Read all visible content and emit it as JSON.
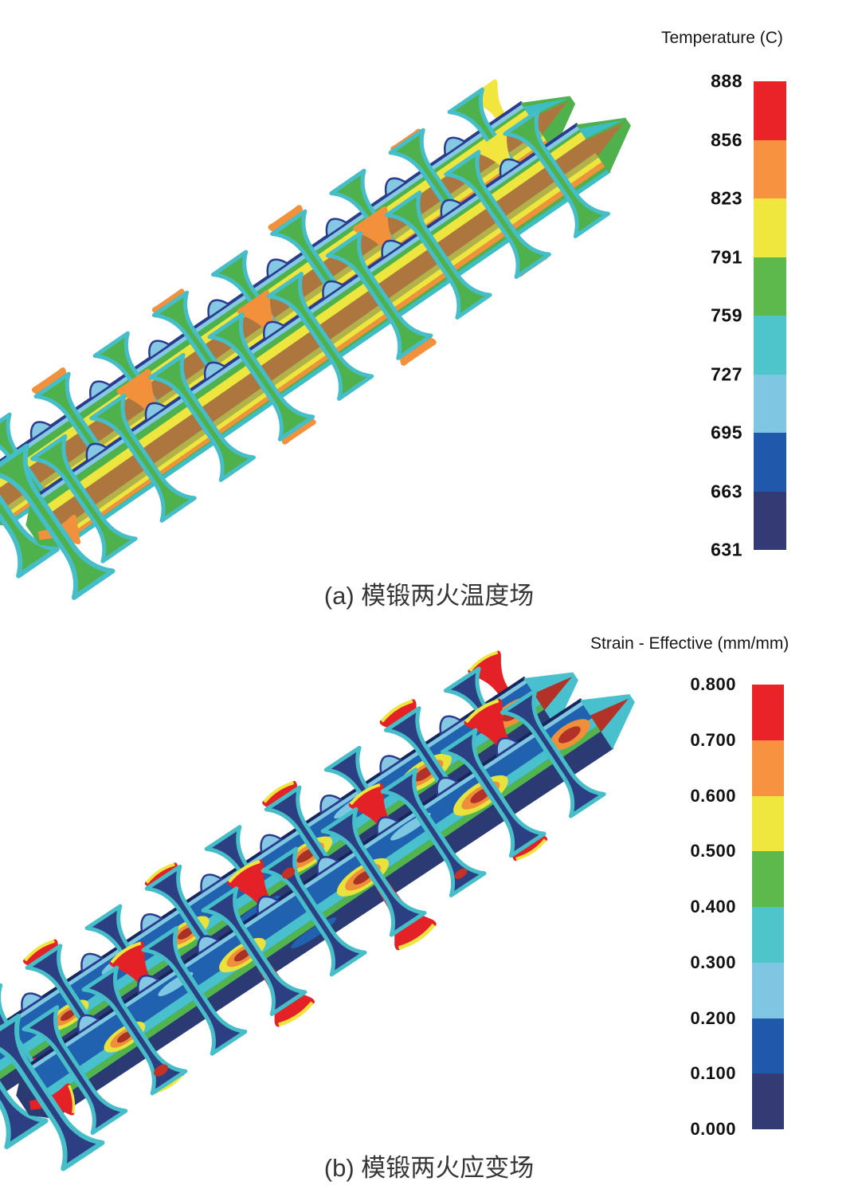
{
  "figure_a": {
    "caption": "(a) 模锻两火温度场",
    "legend": {
      "title": "Temperature (C)",
      "tick_labels": [
        "888",
        "856",
        "823",
        "791",
        "759",
        "727",
        "695",
        "663",
        "631"
      ],
      "band_colors_top_to_bottom": [
        "#ea2328",
        "#f69240",
        "#efe73e",
        "#5eb94d",
        "#4ec4cb",
        "#7fc6e2",
        "#2059ab",
        "#343a73"
      ]
    }
  },
  "figure_b": {
    "caption": "(b) 模锻两火应变场",
    "legend": {
      "title": "Strain - Effective (mm/mm)",
      "tick_labels": [
        "0.800",
        "0.700",
        "0.600",
        "0.500",
        "0.400",
        "0.300",
        "0.200",
        "0.100",
        "0.000"
      ],
      "band_colors_top_to_bottom": [
        "#ea2328",
        "#f69240",
        "#efe73e",
        "#5eb94d",
        "#4ec4cb",
        "#7fc6e2",
        "#2059ab",
        "#343a73"
      ]
    }
  },
  "chart_data": [
    {
      "type": "heatmap",
      "title": "Temperature (C)",
      "caption": "(a) 模锻两火温度场",
      "subject": "3D FEA temperature field contour of die-forged twin crankshaft forging after second heat",
      "colorbar_ticks": [
        888,
        856,
        823,
        791,
        759,
        727,
        695,
        663,
        631
      ],
      "value_range": [
        631,
        888
      ],
      "band_colors_high_to_low": [
        "#ea2328",
        "#f69240",
        "#efe73e",
        "#5eb94d",
        "#4ec4cb",
        "#7fc6e2",
        "#2059ab",
        "#343a73"
      ],
      "legend_position": "right",
      "dominant_surface_values_C": [
        759,
        823,
        856
      ],
      "hotspot_values_C": [
        888
      ]
    },
    {
      "type": "heatmap",
      "title": "Strain - Effective (mm/mm)",
      "caption": "(b) 模锻两火应变场",
      "subject": "3D FEA effective strain field contour of die-forged twin crankshaft forging after second heat",
      "colorbar_ticks": [
        0.8,
        0.7,
        0.6,
        0.5,
        0.4,
        0.3,
        0.2,
        0.1,
        0.0
      ],
      "value_range": [
        0.0,
        0.8
      ],
      "band_colors_high_to_low": [
        "#ea2328",
        "#f69240",
        "#efe73e",
        "#5eb94d",
        "#4ec4cb",
        "#7fc6e2",
        "#2059ab",
        "#343a73"
      ],
      "legend_position": "right",
      "dominant_surface_values": [
        0.05,
        0.2,
        0.3
      ],
      "hotspot_values": [
        0.8
      ]
    }
  ]
}
